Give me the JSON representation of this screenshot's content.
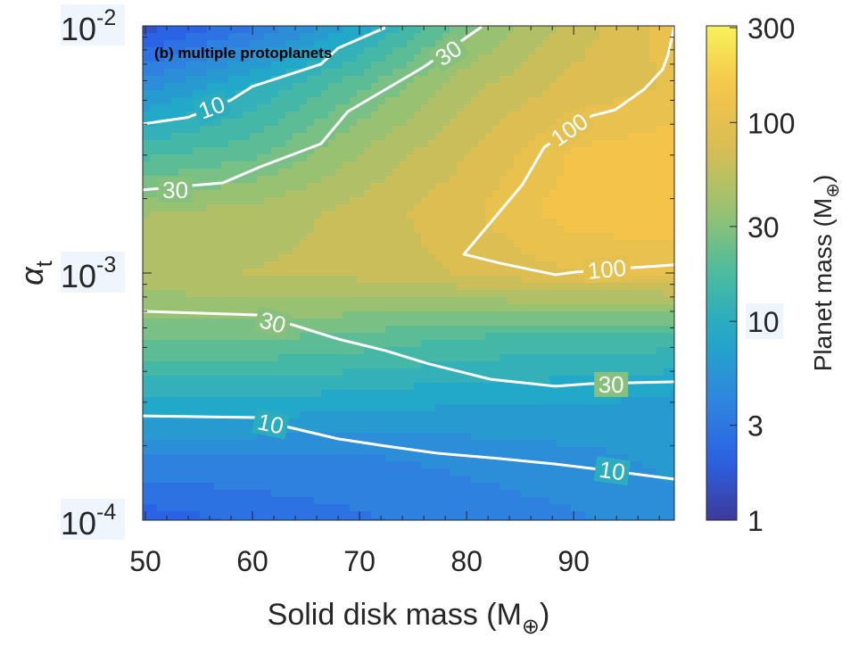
{
  "chart_data": {
    "type": "heatmap",
    "style": "filled-contour",
    "panel_label": "(b) multiple protoplanets",
    "xlabel": "Solid disk mass (M",
    "xlabel_sub": "⊕",
    "xlabel_close": ")",
    "ylabel": "α",
    "ylabel_sub": "t",
    "xlim": [
      49.75,
      99.4
    ],
    "ylim": [
      0.0001,
      0.01
    ],
    "yscale": "log",
    "xticks": [
      50,
      60,
      70,
      80,
      90
    ],
    "xtick_labels": [
      "50",
      "60",
      "70",
      "80",
      "90"
    ],
    "yticks": [
      {
        "base": "10",
        "exp": "-2",
        "value": 0.01
      },
      {
        "base": "10",
        "exp": "-3",
        "value": 0.001
      },
      {
        "base": "10",
        "exp": "-4",
        "value": 0.0001
      }
    ],
    "grid": false,
    "x": [
      50,
      60,
      70,
      80,
      90,
      99.4
    ],
    "log10_y": [
      -4,
      -3.75,
      -3.5,
      -3.25,
      -3,
      -2.75,
      -2.5,
      -2.25,
      -2
    ],
    "z": [
      [
        2,
        2.5,
        3,
        3.5,
        4,
        5
      ],
      [
        4,
        4,
        4,
        4.5,
        5,
        6
      ],
      [
        10,
        10,
        9,
        8,
        8,
        7
      ],
      [
        25,
        25,
        22,
        18,
        16,
        16
      ],
      [
        50,
        55,
        60,
        75,
        95,
        100
      ],
      [
        40,
        45,
        60,
        90,
        150,
        160
      ],
      [
        15,
        20,
        40,
        70,
        130,
        150
      ],
      [
        5,
        10,
        22,
        50,
        80,
        100
      ],
      [
        1.5,
        3,
        8,
        28,
        60,
        110
      ]
    ],
    "contour_lines": [
      {
        "level": 10,
        "label": "10",
        "points": [
          [
            49.75,
            -2.397
          ],
          [
            54,
            -2.37
          ],
          [
            58,
            -2.3
          ],
          [
            60,
            -2.245
          ],
          [
            66.4,
            -2.155
          ],
          [
            68,
            -2.09
          ],
          [
            72.4,
            -2.007
          ]
        ]
      },
      {
        "level": 30,
        "label": "30",
        "points": [
          [
            49.75,
            -2.664
          ],
          [
            57.25,
            -2.635
          ],
          [
            60.75,
            -2.57
          ],
          [
            66.4,
            -2.477
          ],
          [
            68.9,
            -2.347
          ],
          [
            76,
            -2.166
          ],
          [
            81.4,
            -2.004
          ]
        ]
      },
      {
        "level": 100,
        "label": "100",
        "points": [
          [
            99.4,
            -2.004
          ],
          [
            98.8,
            -2.119
          ],
          [
            98.3,
            -2.177
          ],
          [
            96.6,
            -2.256
          ],
          [
            93.9,
            -2.339
          ],
          [
            91.7,
            -2.364
          ],
          [
            87.25,
            -2.491
          ],
          [
            85.2,
            -2.643
          ],
          [
            79.75,
            -2.924
          ],
          [
            83.1,
            -2.96
          ],
          [
            88.3,
            -3.007
          ],
          [
            90.2,
            -2.996
          ],
          [
            95.7,
            -2.978
          ],
          [
            99.4,
            -2.967
          ]
        ]
      },
      {
        "level": 30,
        "label": "30",
        "points": [
          [
            49.75,
            -3.155
          ],
          [
            60.6,
            -3.17
          ],
          [
            64,
            -3.213
          ],
          [
            68,
            -3.267
          ],
          [
            72.4,
            -3.314
          ],
          [
            76.5,
            -3.368
          ],
          [
            82.25,
            -3.43
          ],
          [
            88.3,
            -3.458
          ],
          [
            91.4,
            -3.448
          ],
          [
            99.4,
            -3.44
          ]
        ]
      },
      {
        "level": 10,
        "label": "10",
        "points": [
          [
            49.75,
            -3.578
          ],
          [
            60.6,
            -3.585
          ],
          [
            63.1,
            -3.621
          ],
          [
            68,
            -3.671
          ],
          [
            72.4,
            -3.7
          ],
          [
            77.25,
            -3.729
          ],
          [
            83.1,
            -3.751
          ],
          [
            88.3,
            -3.773
          ],
          [
            93,
            -3.798
          ],
          [
            99.4,
            -3.834
          ]
        ]
      }
    ],
    "contour_labels": [
      {
        "text": "10",
        "x": 56.2,
        "log10_y": -2.33,
        "angle": -20
      },
      {
        "text": "30",
        "x": 52.8,
        "log10_y": -2.664,
        "angle": 0
      },
      {
        "text": "30",
        "x": 78.3,
        "log10_y": -2.11,
        "angle": -35
      },
      {
        "text": "100",
        "x": 89.6,
        "log10_y": -2.42,
        "angle": -35
      },
      {
        "text": "100",
        "x": 93.1,
        "log10_y": -2.985,
        "angle": -5
      },
      {
        "text": "30",
        "x": 61.9,
        "log10_y": -3.2,
        "angle": 15
      },
      {
        "text": "30",
        "x": 93.5,
        "log10_y": -3.451,
        "angle": 0
      },
      {
        "text": "10",
        "x": 61.7,
        "log10_y": -3.61,
        "angle": 12
      },
      {
        "text": "10",
        "x": 93.6,
        "log10_y": -3.8,
        "angle": 8
      }
    ],
    "colorbar": {
      "label": "Planet mass (M",
      "label_sub": "⊕",
      "label_close": ")",
      "scale": "log",
      "range": [
        1,
        300
      ],
      "ticks": [
        1,
        3,
        10,
        30,
        100,
        300
      ],
      "tick_labels": [
        "1",
        "3",
        "10",
        "30",
        "100",
        "300"
      ],
      "colormap": "parula",
      "colors": [
        "#3e3a9a",
        "#2a63e6",
        "#2f88dd",
        "#22a8c8",
        "#4cbb9f",
        "#98c272",
        "#d6bd55",
        "#f4c44a",
        "#f8f25a"
      ]
    }
  }
}
